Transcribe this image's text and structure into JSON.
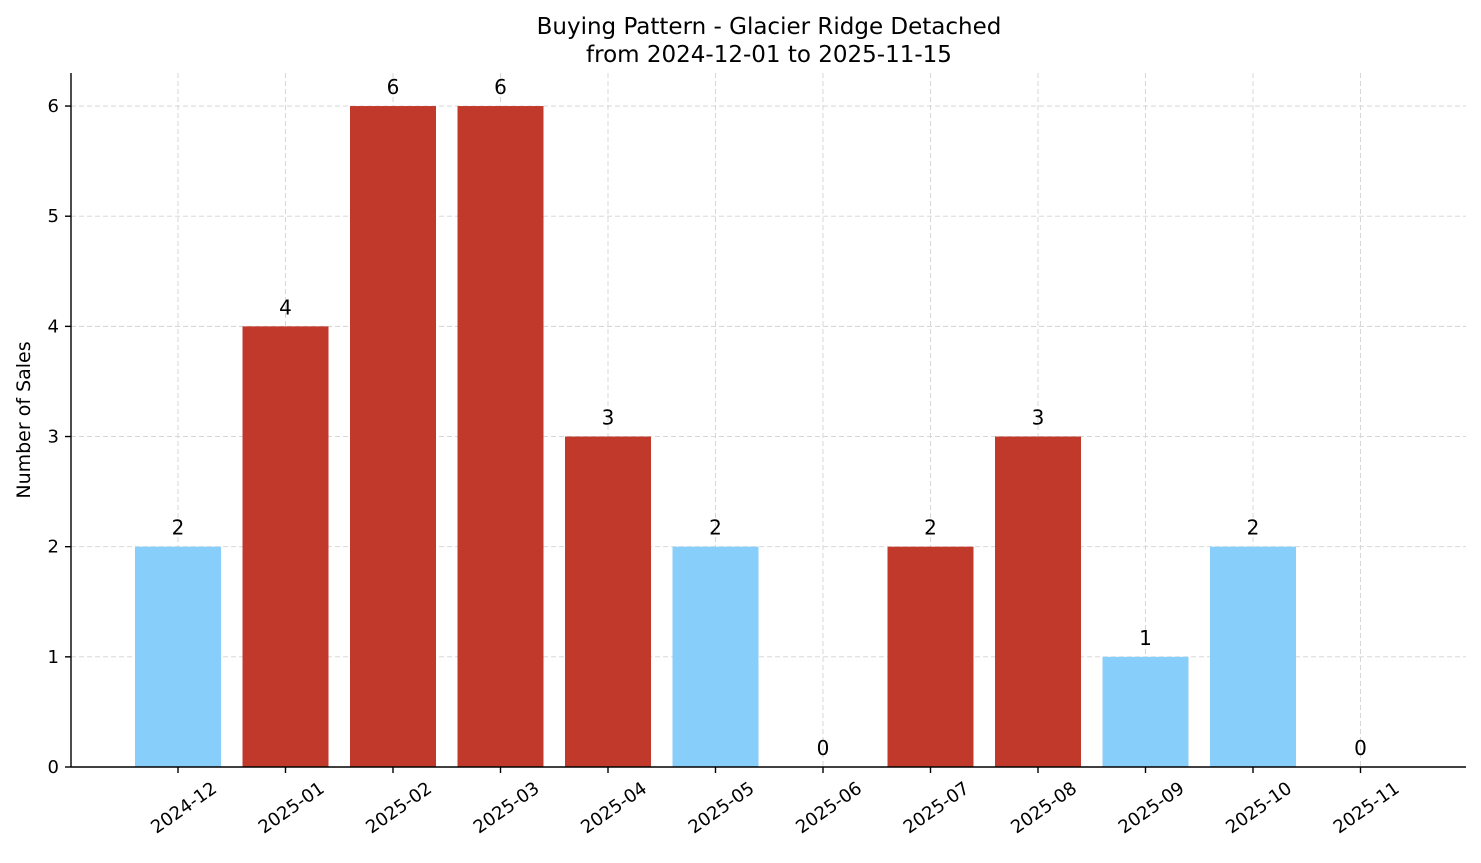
{
  "chart_data": {
    "type": "bar",
    "title": "Buying Pattern - Glacier Ridge Detached",
    "subtitle": "from 2024-12-01 to 2025-11-15",
    "xlabel": "",
    "ylabel": "Number of Sales",
    "categories": [
      "2024-12",
      "2025-01",
      "2025-02",
      "2025-03",
      "2025-04",
      "2025-05",
      "2025-06",
      "2025-07",
      "2025-08",
      "2025-09",
      "2025-10",
      "2025-11"
    ],
    "values": [
      2,
      4,
      6,
      6,
      3,
      2,
      0,
      2,
      3,
      1,
      2,
      0
    ],
    "bar_colors": [
      "#87CEFA",
      "#C0392B",
      "#C0392B",
      "#C0392B",
      "#C0392B",
      "#87CEFA",
      "#87CEFA",
      "#C0392B",
      "#C0392B",
      "#87CEFA",
      "#87CEFA",
      "#87CEFA"
    ],
    "ylim": [
      0,
      6.3
    ],
    "yticks": [
      0,
      1,
      2,
      3,
      4,
      5,
      6
    ],
    "grid": true,
    "data_labels": true
  }
}
